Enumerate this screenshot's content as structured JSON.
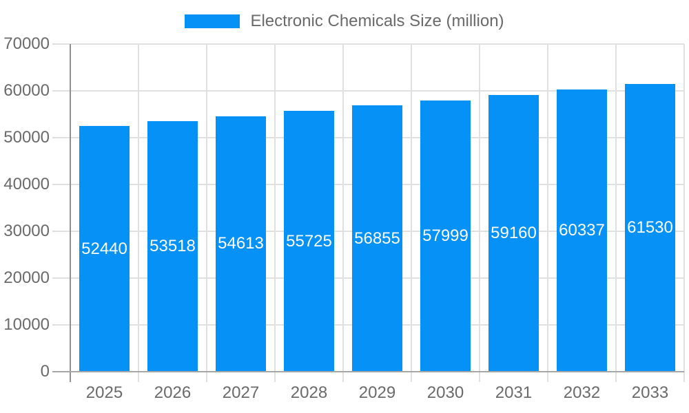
{
  "chart_data": {
    "type": "bar",
    "title": "Electronic Chemicals Size (million)",
    "legend": {
      "label": "Electronic Chemicals Size (million)",
      "position": "top-center",
      "swatch_color": "#0591f5"
    },
    "categories": [
      "2025",
      "2026",
      "2027",
      "2028",
      "2029",
      "2030",
      "2031",
      "2032",
      "2033"
    ],
    "series": [
      {
        "name": "Electronic Chemicals Size (million)",
        "values": [
          52440,
          53518,
          54613,
          55725,
          56855,
          57999,
          59160,
          60337,
          61530
        ]
      }
    ],
    "bar_value_labels": [
      "52440",
      "53518",
      "54613",
      "55725",
      "56855",
      "57999",
      "59160",
      "60337",
      "61530"
    ],
    "xlabel": "",
    "ylabel": "",
    "ylim": [
      0,
      70000
    ],
    "yticks": [
      0,
      10000,
      20000,
      30000,
      40000,
      50000,
      60000,
      70000
    ],
    "grid": {
      "horizontal": true,
      "vertical_category_boundaries": true
    },
    "legend_on": true,
    "colors": {
      "bar": "#0591f5",
      "value_label_text": "#ffffff",
      "axis_text": "#6a6a6a",
      "legend_text": "#6a6a6a",
      "gridline": "#e0e0e0",
      "axis_line": "#8f8f8f",
      "baseline": "#a6a6a6",
      "background": "#ffffff"
    }
  }
}
